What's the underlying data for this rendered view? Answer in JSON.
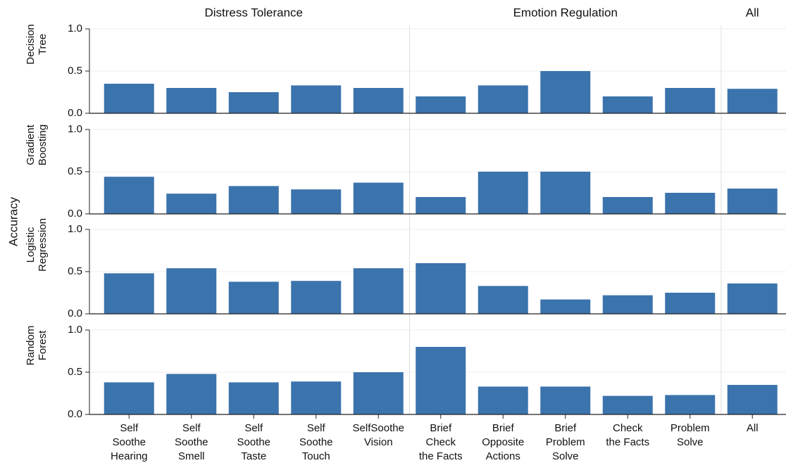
{
  "chart_data": {
    "type": "bar",
    "y_label": "Accuracy",
    "groups": [
      {
        "name": "Distress Tolerance",
        "categories": [
          "Self\nSoothe\nHearing",
          "Self\nSoothe\nSmell",
          "Self\nSoothe\nTaste",
          "Self\nSoothe\nTouch",
          "SelfSoothe\nVision"
        ]
      },
      {
        "name": "Emotion Regulation",
        "categories": [
          "Brief\nCheck\nthe Facts",
          "Brief\nOpposite\nActions",
          "Brief\nProblem\nSolve",
          "Check\nthe Facts",
          "Problem\nSolve"
        ]
      },
      {
        "name": "All",
        "categories": [
          "All"
        ]
      }
    ],
    "series": [
      {
        "name": "Decision Tree",
        "color": "#3b73ad",
        "values": [
          0.35,
          0.3,
          0.25,
          0.33,
          0.3,
          0.2,
          0.33,
          0.5,
          0.2,
          0.3,
          0.29
        ]
      },
      {
        "name": "Gradient Boosting",
        "color": "#3b73ad",
        "values": [
          0.44,
          0.24,
          0.33,
          0.29,
          0.37,
          0.2,
          0.5,
          0.5,
          0.2,
          0.25,
          0.3
        ]
      },
      {
        "name": "Logistic Regression",
        "color": "#3b73ad",
        "values": [
          0.48,
          0.54,
          0.38,
          0.39,
          0.54,
          0.6,
          0.33,
          0.17,
          0.22,
          0.25,
          0.36
        ]
      },
      {
        "name": "Random Forest",
        "color": "#3b73ad",
        "values": [
          0.38,
          0.48,
          0.38,
          0.39,
          0.5,
          0.8,
          0.33,
          0.33,
          0.22,
          0.23,
          0.35
        ]
      }
    ],
    "ylim": [
      0,
      1
    ],
    "yticks": [
      {
        "value": 0,
        "label": "0.0"
      },
      0.5,
      {
        "value": 1,
        "label": "1.0"
      }
    ],
    "grid": true
  }
}
